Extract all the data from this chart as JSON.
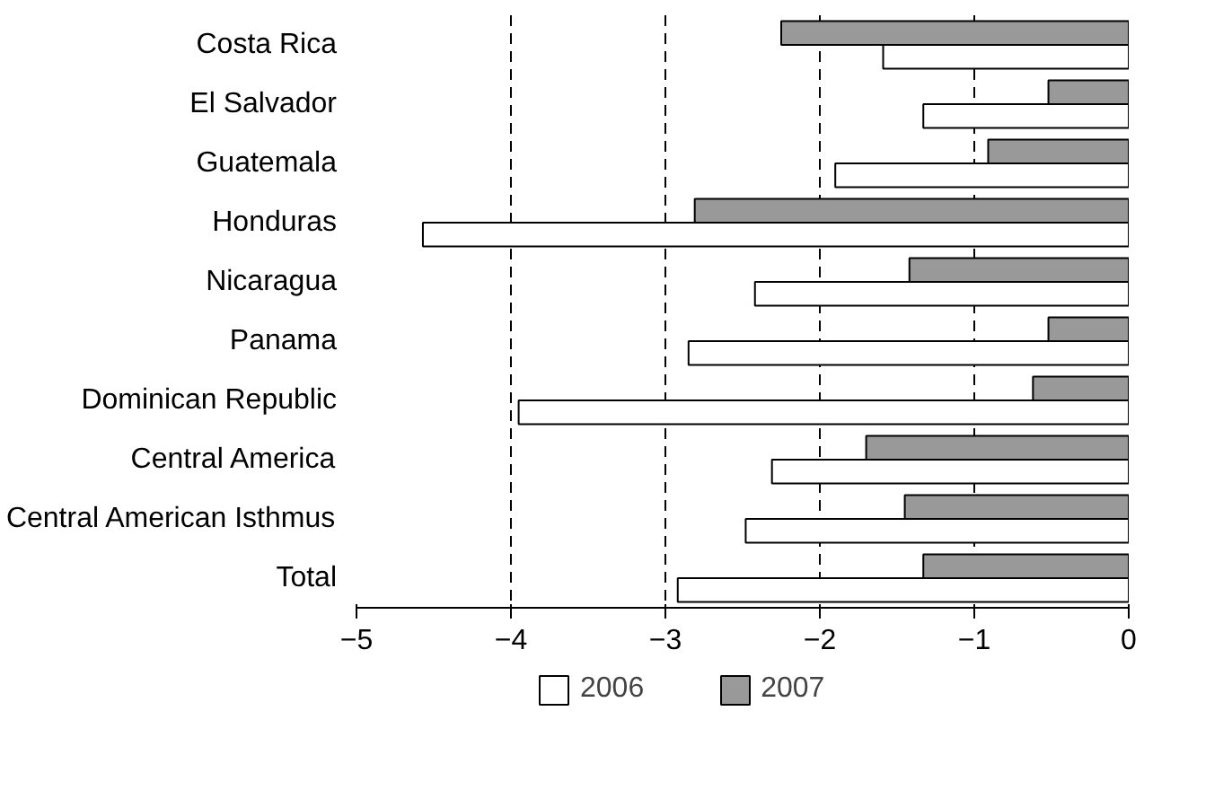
{
  "chart_data": {
    "type": "bar",
    "orientation": "horizontal",
    "categories": [
      "Costa Rica",
      "El Salvador",
      "Guatemala",
      "Honduras",
      "Nicaragua",
      "Panama",
      "Dominican Republic",
      "Central America",
      "Central American Isthmus",
      "Total"
    ],
    "series": [
      {
        "name": "2006",
        "color": "#ffffff",
        "values": [
          -1.59,
          -1.33,
          -1.9,
          -4.57,
          -2.42,
          -2.85,
          -3.95,
          -2.31,
          -2.48,
          -2.92
        ]
      },
      {
        "name": "2007",
        "color": "#999999",
        "values": [
          -2.25,
          -0.52,
          -0.91,
          -2.81,
          -1.42,
          -0.52,
          -0.62,
          -1.7,
          -1.45,
          -1.33
        ]
      }
    ],
    "xlim": [
      -5,
      0
    ],
    "xticks": [
      -5,
      -4,
      -3,
      -2,
      -1,
      0
    ],
    "grid": "x",
    "legend": "bottom"
  }
}
